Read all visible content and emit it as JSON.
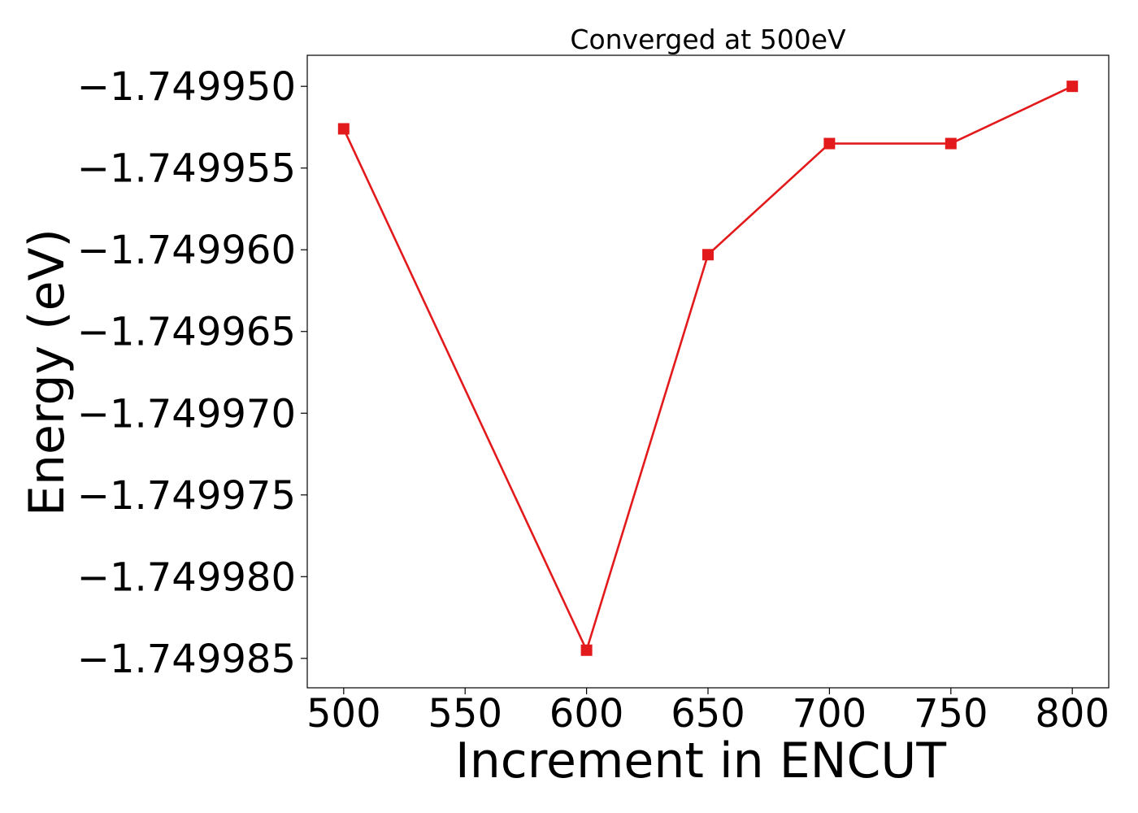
{
  "chart_data": {
    "type": "line",
    "title": "Converged at 500eV",
    "xlabel": "Increment in ENCUT",
    "ylabel": "Energy (eV)",
    "x": [
      500,
      600,
      650,
      700,
      750,
      800
    ],
    "series": [
      {
        "values": [
          -1.7499526,
          -1.7499845,
          -1.7499603,
          -1.7499535,
          -1.7499535,
          -1.74995
        ],
        "color": "#e31a1c",
        "marker": "square"
      }
    ],
    "xticks": [
      500,
      550,
      600,
      650,
      700,
      750,
      800
    ],
    "xtick_labels": [
      "500",
      "550",
      "600",
      "650",
      "700",
      "750",
      "800"
    ],
    "yticks": [
      -1.74995,
      -1.749955,
      -1.74996,
      -1.749965,
      -1.74997,
      -1.749975,
      -1.74998,
      -1.749985
    ],
    "ytick_labels": [
      "−1.749950",
      "−1.749955",
      "−1.749960",
      "−1.749965",
      "−1.749970",
      "−1.749975",
      "−1.749980",
      "−1.749985"
    ],
    "xlim": [
      485,
      815
    ],
    "ylim": [
      -1.7499868,
      -1.7499481
    ],
    "grid": false,
    "legend": "none"
  }
}
